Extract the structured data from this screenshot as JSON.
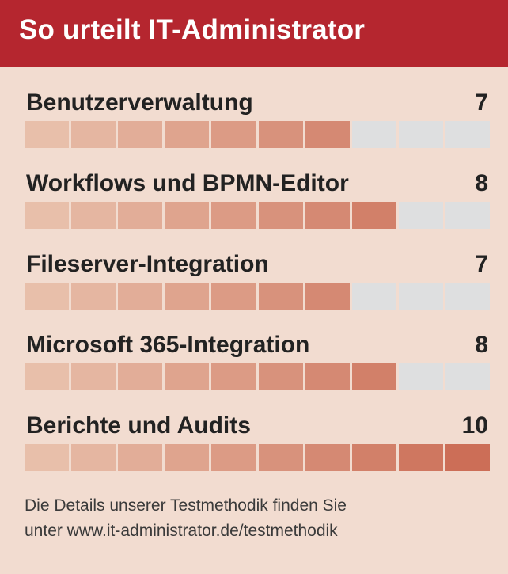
{
  "header": {
    "title": "So urteilt IT-Administrator"
  },
  "chart_data": {
    "type": "bar",
    "orientation": "horizontal",
    "segments_max": 10,
    "categories": [
      "Benutzerverwaltung",
      "Workflows und BPMN-Editor",
      "Fileserver-Integration",
      "Microsoft 365-Integration",
      "Berichte und Audits"
    ],
    "values": [
      7,
      8,
      7,
      8,
      10
    ],
    "score_labels": [
      "7",
      "8",
      "7",
      "8",
      "10"
    ],
    "colors": {
      "filled_start": "#e8bfaa",
      "filled_end": "#cc6e57",
      "empty": "#dedfe0",
      "header": "#b5262f",
      "background": "#f2dcd0"
    }
  },
  "footer": {
    "line1": "Die Details unserer Testmethodik finden Sie",
    "line2": "unter www.it-administrator.de/testmethodik"
  }
}
